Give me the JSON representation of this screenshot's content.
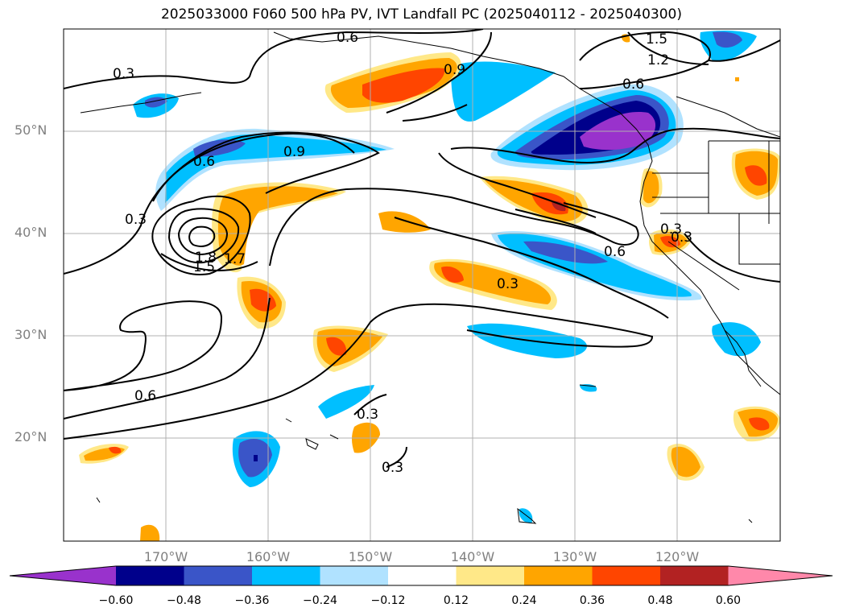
{
  "title": "2025033000 F060 500 hPa PV, IVT Landfall PC (2025040112 - 2025040300)",
  "lat_labels": [
    "50°N",
    "40°N",
    "30°N",
    "20°N"
  ],
  "lon_labels": [
    "170°W",
    "160°W",
    "150°W",
    "140°W",
    "130°W",
    "120°W"
  ],
  "contour_labels": [
    "0.6",
    "1.5",
    "1.2",
    "0.3",
    "0.9",
    "0.6",
    "0.9",
    "0.3",
    "0.6",
    "0.3",
    "1.8",
    "1.7",
    "1.5",
    "0.3",
    "0.6",
    "0.3",
    "0.6",
    "0.3",
    "0.3"
  ],
  "colorbar": {
    "ticks": [
      "−0.60",
      "−0.48",
      "−0.36",
      "−0.24",
      "−0.12",
      "0.12",
      "0.24",
      "0.36",
      "0.48",
      "0.60"
    ],
    "colors": [
      "#9932cc",
      "#00008b",
      "#3a55c8",
      "#00bfff",
      "#b0e2ff",
      "#ffffff",
      "#ffe888",
      "#ffa500",
      "#ff4500",
      "#b22222",
      "#ff88aa"
    ]
  }
}
